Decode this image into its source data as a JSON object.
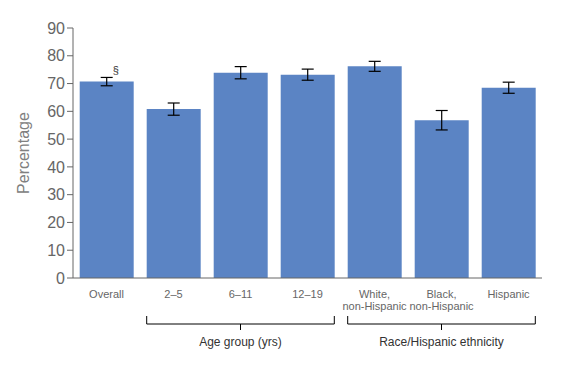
{
  "chart_data": {
    "type": "bar",
    "categories": [
      "Overall",
      "2–5",
      "6–11",
      "12–19",
      "White,\nnon-Hispanic",
      "Black,\nnon-Hispanic",
      "Hispanic"
    ],
    "values": [
      70.7,
      60.8,
      73.9,
      73.2,
      76.2,
      56.8,
      68.5
    ],
    "errors": [
      1.5,
      2.2,
      2.2,
      2.0,
      1.8,
      3.5,
      2.0
    ],
    "color": "#5b84c4",
    "ylabel": "Percentage",
    "ylim": [
      0,
      90
    ],
    "yticks": [
      0,
      10,
      20,
      30,
      40,
      50,
      60,
      70,
      80,
      90
    ],
    "annotations": [
      {
        "text": "§",
        "category": "Overall"
      },
      {
        "text": "Age group (yrs)",
        "from": "2–5",
        "to": "12–19"
      },
      {
        "text": "Race/Hispanic ethnicity",
        "from": "White,\nnon-Hispanic",
        "to": "Hispanic"
      }
    ]
  }
}
